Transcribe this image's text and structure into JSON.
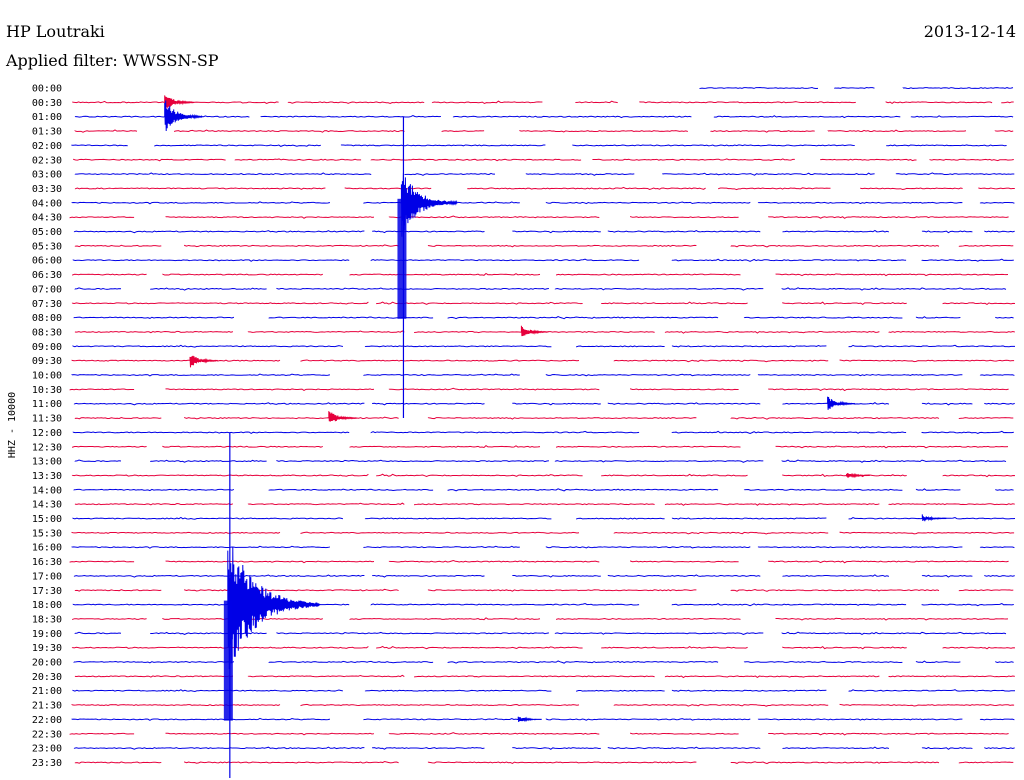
{
  "header": {
    "station": "HP Loutraki",
    "filter": "Applied filter: WWSSN-SP",
    "date": "2013-12-14"
  },
  "chart_data": {
    "type": "line",
    "ylabel": "HHZ - 10000",
    "colors": [
      "#0000e6",
      "#e6003c"
    ],
    "rows": [
      "00:00",
      "00:30",
      "01:00",
      "01:30",
      "02:00",
      "02:30",
      "03:00",
      "03:30",
      "04:00",
      "04:30",
      "05:00",
      "05:30",
      "06:00",
      "06:30",
      "07:00",
      "07:30",
      "08:00",
      "08:30",
      "09:00",
      "09:30",
      "10:00",
      "10:30",
      "11:00",
      "11:30",
      "12:00",
      "12:30",
      "13:00",
      "13:30",
      "14:00",
      "14:30",
      "15:00",
      "15:30",
      "16:00",
      "16:30",
      "17:00",
      "17:30",
      "18:00",
      "18:30",
      "19:00",
      "19:30",
      "20:00",
      "20:30",
      "21:00",
      "21:30",
      "22:00",
      "22:30",
      "23:00",
      "23:30"
    ],
    "row_span_minutes": 30,
    "events": [
      {
        "row": "00:30",
        "minute": 3.0,
        "strength": 1.6
      },
      {
        "row": "01:00",
        "minute": 3.0,
        "strength": 3.0
      },
      {
        "row": "04:00",
        "minute": 10.5,
        "strength": 6.0
      },
      {
        "row": "08:30",
        "minute": 14.3,
        "strength": 1.2
      },
      {
        "row": "09:30",
        "minute": 3.8,
        "strength": 1.4
      },
      {
        "row": "11:30",
        "minute": 8.2,
        "strength": 1.4
      },
      {
        "row": "11:00",
        "minute": 24.0,
        "strength": 1.3
      },
      {
        "row": "15:00",
        "minute": 27.0,
        "strength": 0.7
      },
      {
        "row": "13:30",
        "minute": 24.6,
        "strength": 0.6
      },
      {
        "row": "22:00",
        "minute": 14.2,
        "strength": 0.6
      },
      {
        "row": "18:00",
        "minute": 5.0,
        "strength": 12.0
      }
    ]
  }
}
